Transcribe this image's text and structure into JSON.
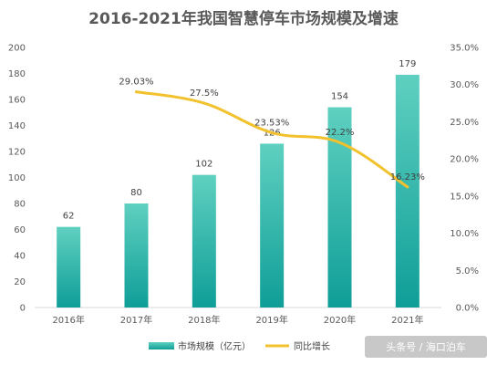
{
  "chart_data": {
    "type": "bar",
    "title": "2016-2021年我国智慧停车市场规模及增速",
    "categories": [
      "2016年",
      "2017年",
      "2018年",
      "2019年",
      "2020年",
      "2021年"
    ],
    "series": [
      {
        "name": "市场规模（亿元）",
        "type": "bar",
        "axis": "left",
        "values": [
          62,
          80,
          102,
          126,
          154,
          179
        ],
        "labels": [
          "62",
          "80",
          "102",
          "126",
          "154",
          "179"
        ],
        "color_top": "#5fd0c0",
        "color_bottom": "#0f9e98"
      },
      {
        "name": "同比增长",
        "type": "line",
        "axis": "right",
        "values": [
          null,
          29.03,
          27.5,
          23.53,
          22.2,
          16.23
        ],
        "labels": [
          "",
          "29.03%",
          "27.5%",
          "23.53%",
          "22.2%",
          "16.23%"
        ],
        "color": "#f2c12e"
      }
    ],
    "ylim_left": [
      0,
      200
    ],
    "yticks_left": [
      "0",
      "20",
      "40",
      "60",
      "80",
      "100",
      "120",
      "140",
      "160",
      "180",
      "200"
    ],
    "ylim_right": [
      0,
      35
    ],
    "yticks_right": [
      "0.0%",
      "5.0%",
      "10.0%",
      "15.0%",
      "20.0%",
      "25.0%",
      "30.0%",
      "35.0%"
    ],
    "grid": false,
    "legend": "bottom"
  },
  "watermark": {
    "text": "头条号 / 海口泊车"
  }
}
